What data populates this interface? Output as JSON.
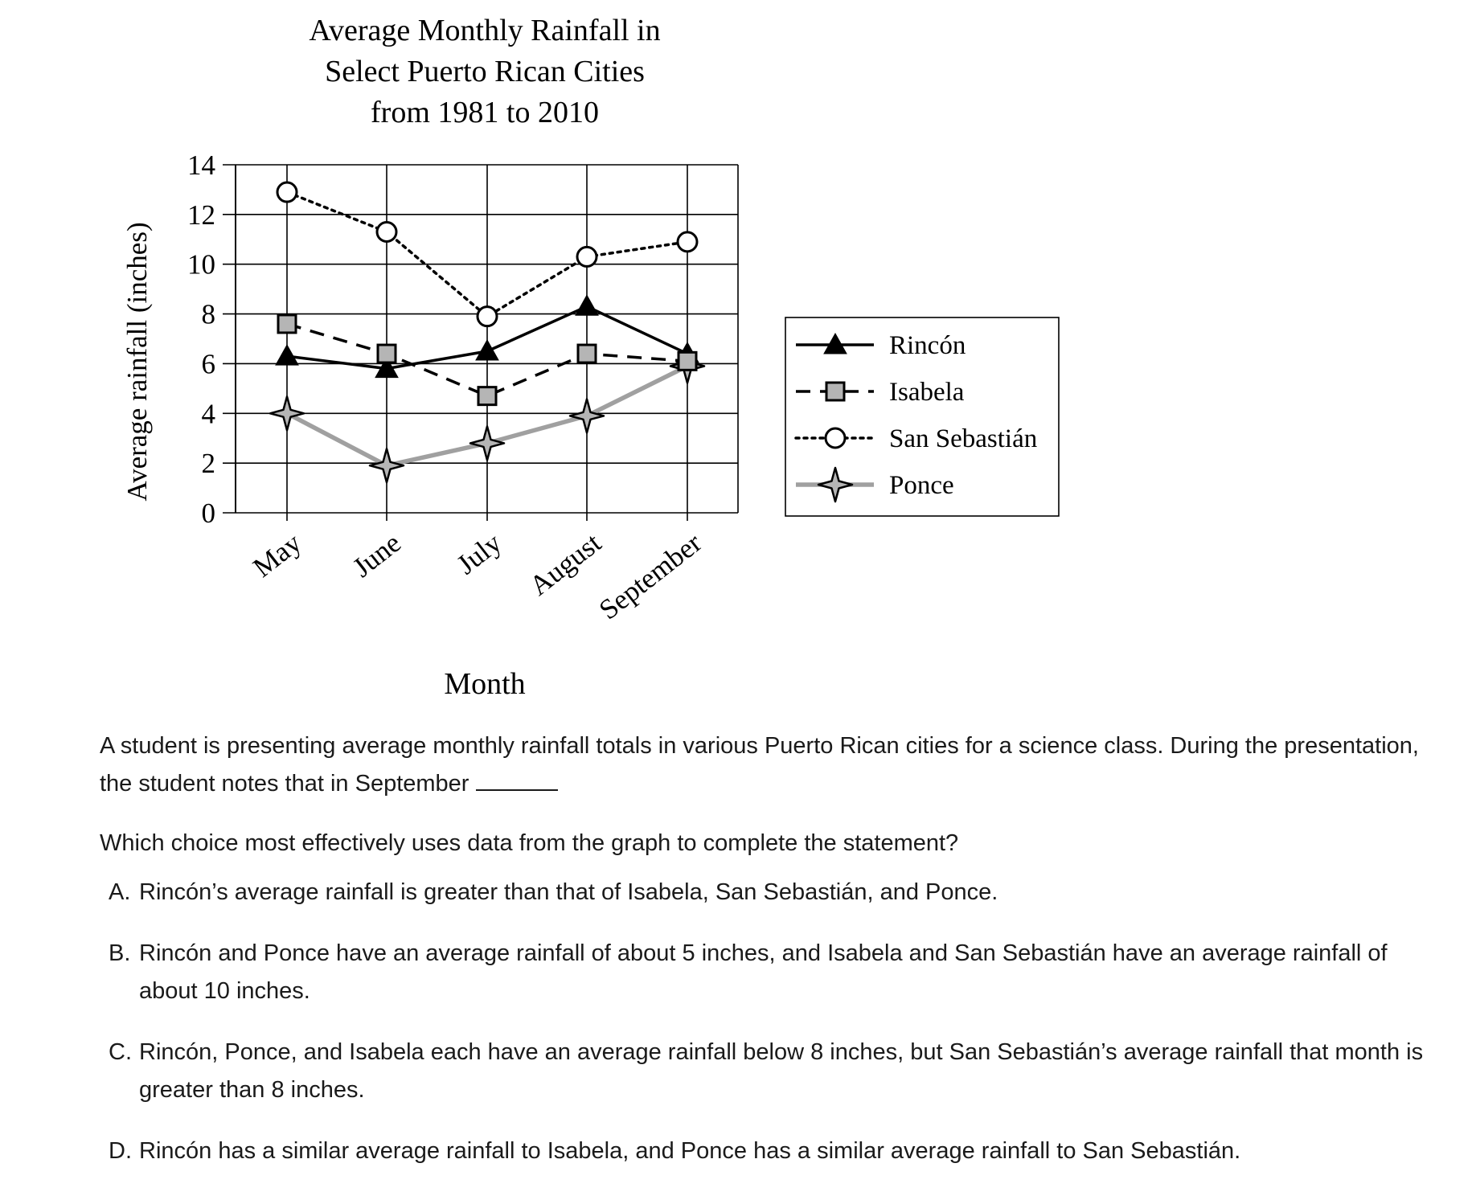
{
  "chart_data": {
    "type": "line",
    "title": [
      "Average Monthly Rainfall in",
      "Select Puerto Rican Cities",
      "from 1981 to 2010"
    ],
    "xlabel": "Month",
    "ylabel": "Average rainfall (inches)",
    "categories": [
      "May",
      "June",
      "July",
      "August",
      "September"
    ],
    "ylim": [
      0,
      14
    ],
    "yticks": [
      "0",
      "2",
      "4",
      "6",
      "8",
      "10",
      "12",
      "14"
    ],
    "grid": true,
    "legend_position": "right",
    "series": [
      {
        "name": "Rincón",
        "marker": "triangle",
        "line": "solid",
        "color": "#000000",
        "values": [
          6.3,
          5.8,
          6.5,
          8.3,
          6.4
        ]
      },
      {
        "name": "Isabela",
        "marker": "square",
        "line": "dashed",
        "color": "#000000",
        "values": [
          7.6,
          6.4,
          4.7,
          6.4,
          6.1
        ]
      },
      {
        "name": "San Sebastián",
        "marker": "circle",
        "line": "dotted",
        "color": "#000000",
        "values": [
          12.9,
          11.3,
          7.9,
          10.3,
          10.9
        ]
      },
      {
        "name": "Ponce",
        "marker": "star",
        "line": "solid",
        "color": "#9a9a9a",
        "values": [
          4.0,
          1.9,
          2.8,
          3.9,
          5.9
        ]
      }
    ]
  },
  "question": {
    "stem_part1": "A student is presenting average monthly rainfall totals in various Puerto Rican cities for a science class. During the presentation, the student notes that in September",
    "prompt": "Which choice most effectively uses data from the graph to complete the statement?",
    "choices": [
      {
        "letter": "A.",
        "text": "Rincón’s average rainfall is greater than that of Isabela, San Sebastián, and Ponce."
      },
      {
        "letter": "B.",
        "text": "Rincón and Ponce have an average rainfall of about 5 inches, and Isabela and San Sebastián have an average rainfall of about 10 inches."
      },
      {
        "letter": "C.",
        "text": "Rincón, Ponce, and Isabela each have an average rainfall below 8 inches, but San Sebastián’s average rainfall that month is greater than 8 inches."
      },
      {
        "letter": "D.",
        "text": "Rincón has a similar average rainfall to Isabela, and Ponce has a similar average rainfall to San Sebastián."
      }
    ]
  }
}
